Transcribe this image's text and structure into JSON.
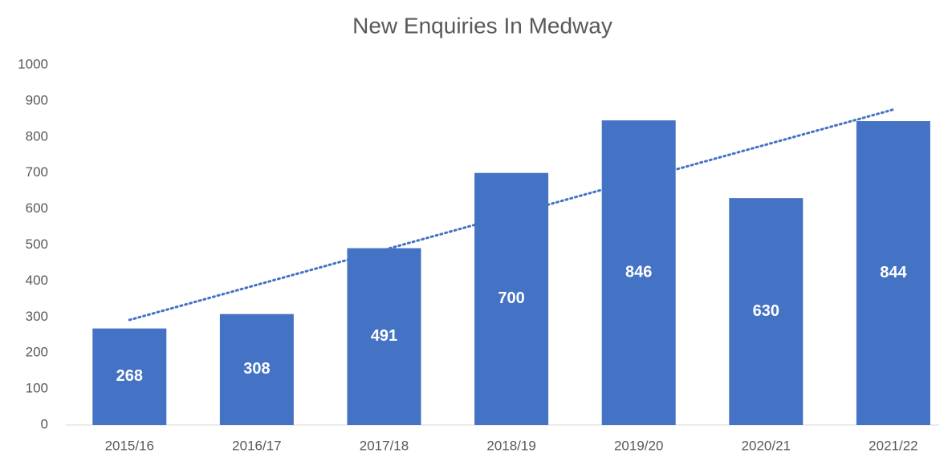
{
  "chart_data": {
    "type": "bar",
    "title": "New Enquiries In Medway",
    "categories": [
      "2015/16",
      "2016/17",
      "2017/18",
      "2018/19",
      "2019/20",
      "2020/21",
      "2021/22"
    ],
    "values": [
      268,
      308,
      491,
      700,
      846,
      630,
      844
    ],
    "color": "#4472c4",
    "ylim": [
      0,
      1000
    ],
    "yticks": [
      0,
      100,
      200,
      300,
      400,
      500,
      600,
      700,
      800,
      900,
      1000
    ],
    "grid": false,
    "trendline": "linear",
    "trendline_color": "#4472c4"
  }
}
